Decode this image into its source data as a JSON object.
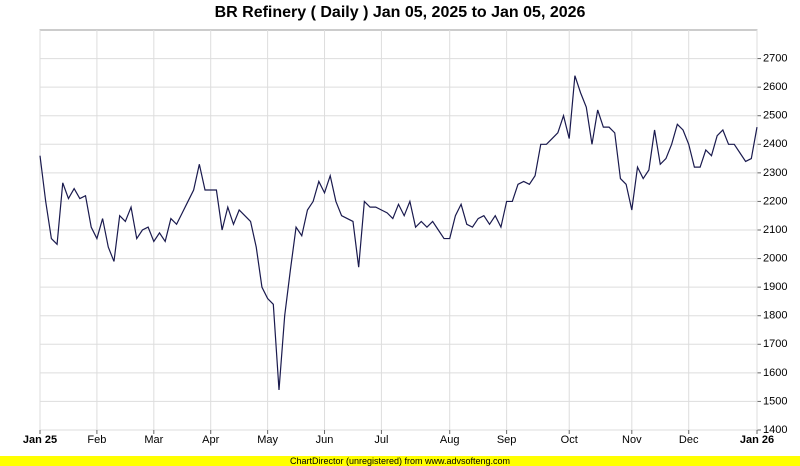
{
  "chart_data": {
    "type": "line",
    "title": "BR Refinery ( Daily ) Jan 05, 2025 to Jan 05, 2026",
    "footer": "ChartDirector (unregistered) from www.advsofteng.com",
    "categories": [
      "Jan 25",
      null,
      null,
      null,
      null,
      null,
      null,
      null,
      null,
      null,
      "Feb",
      null,
      null,
      null,
      null,
      null,
      null,
      null,
      null,
      null,
      "Mar",
      null,
      null,
      null,
      null,
      null,
      null,
      null,
      null,
      null,
      "Apr",
      null,
      null,
      null,
      null,
      null,
      null,
      null,
      null,
      null,
      "May",
      null,
      null,
      null,
      null,
      null,
      null,
      null,
      null,
      null,
      "Jun",
      null,
      null,
      null,
      null,
      null,
      null,
      null,
      null,
      null,
      "Jul",
      null,
      null,
      null,
      null,
      null,
      null,
      null,
      null,
      null,
      null,
      null,
      "Aug",
      null,
      null,
      null,
      null,
      null,
      null,
      null,
      null,
      null,
      "Sep",
      null,
      null,
      null,
      null,
      null,
      null,
      null,
      null,
      null,
      null,
      "Oct",
      null,
      null,
      null,
      null,
      null,
      null,
      null,
      null,
      null,
      null,
      "Nov",
      null,
      null,
      null,
      null,
      null,
      null,
      null,
      null,
      null,
      "Dec",
      null,
      null,
      null,
      null,
      null,
      null,
      null,
      null,
      null,
      null,
      null,
      "Jan 26"
    ],
    "series": [
      {
        "name": "BR Refinery",
        "color": "#1a1a4e",
        "values": [
          2360,
          2200,
          2070,
          2050,
          2265,
          2210,
          2245,
          2210,
          2220,
          2110,
          2070,
          2140,
          2040,
          1990,
          2150,
          2130,
          2180,
          2070,
          2100,
          2110,
          2060,
          2090,
          2060,
          2140,
          2120,
          2160,
          2200,
          2240,
          2330,
          2240,
          2240,
          2240,
          2100,
          2180,
          2120,
          2170,
          2150,
          2130,
          2040,
          1900,
          1860,
          1840,
          1540,
          1800,
          1960,
          2110,
          2080,
          2170,
          2200,
          2270,
          2230,
          2290,
          2200,
          2150,
          2140,
          2130,
          1970,
          2200,
          2180,
          2180,
          2170,
          2160,
          2140,
          2190,
          2150,
          2200,
          2110,
          2130,
          2110,
          2130,
          2100,
          2070,
          2070,
          2150,
          2190,
          2120,
          2110,
          2140,
          2150,
          2120,
          2150,
          2110,
          2200,
          2200,
          2260,
          2270,
          2260,
          2290,
          2400,
          2400,
          2420,
          2440,
          2500,
          2420,
          2640,
          2580,
          2530,
          2400,
          2520,
          2460,
          2460,
          2440,
          2280,
          2260,
          2170,
          2320,
          2280,
          2310,
          2450,
          2330,
          2350,
          2400,
          2470,
          2450,
          2400,
          2320,
          2320,
          2380,
          2360,
          2430,
          2450,
          2400,
          2400,
          2370,
          2340,
          2350,
          2460
        ]
      }
    ],
    "ylim": [
      1400,
      2800
    ],
    "yticks": [
      1400,
      1500,
      1600,
      1700,
      1800,
      1900,
      2000,
      2100,
      2200,
      2300,
      2400,
      2500,
      2600,
      2700
    ],
    "grid": true
  }
}
